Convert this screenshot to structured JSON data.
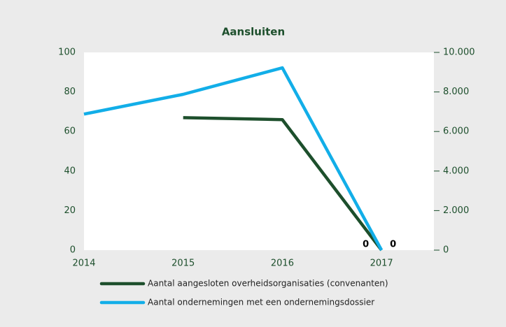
{
  "chart_data": {
    "type": "line",
    "title": "Aansluiten",
    "x": [
      2014,
      2015,
      2016,
      2017
    ],
    "xlim": [
      2014,
      2017.5
    ],
    "xticks": [
      2014,
      2015,
      2016,
      2017
    ],
    "ylim": [
      0,
      100
    ],
    "yticks": [
      0,
      20,
      40,
      60,
      80,
      100
    ],
    "y2lim": [
      0,
      10000
    ],
    "y2ticks": [
      {
        "value": 0,
        "label": "0"
      },
      {
        "value": 2000,
        "label": "2.000"
      },
      {
        "value": 4000,
        "label": "4.000"
      },
      {
        "value": 6000,
        "label": "6.000"
      },
      {
        "value": 8000,
        "label": "8.000"
      },
      {
        "value": 10000,
        "label": "10.000"
      }
    ],
    "grid": false,
    "data_labels": "last",
    "legend": "bottom",
    "series": [
      {
        "name": "Aantal aangesloten overheidsorganisaties (convenanten)",
        "color": "#1d4f2c",
        "values": [
          null,
          67,
          66,
          0
        ]
      },
      {
        "name": "Aantal ondernemingen met een ondernemingsdossier",
        "color": "#12aee8",
        "values": [
          6880,
          7880,
          9220,
          0
        ],
        "axis": "y2"
      }
    ]
  }
}
